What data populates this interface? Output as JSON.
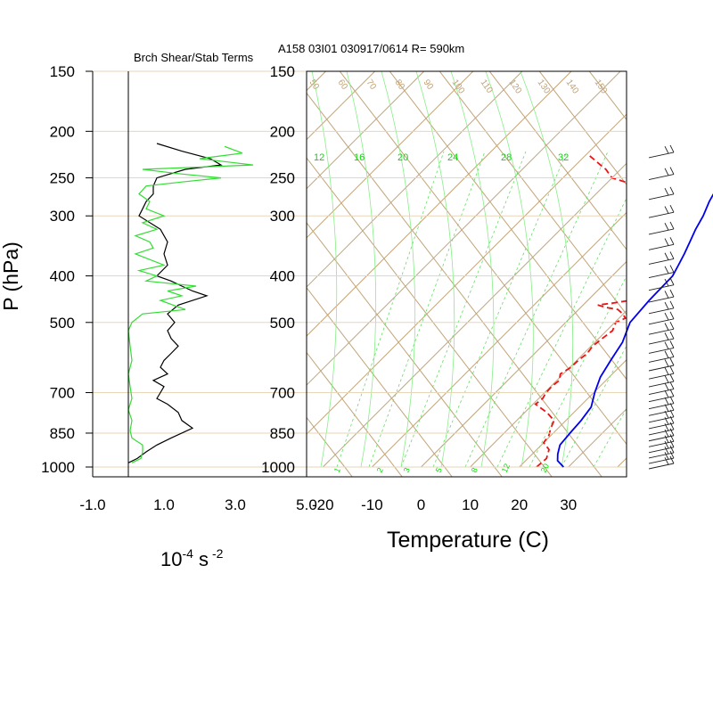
{
  "header": {
    "left_title": "Brch Shear/Stab Terms",
    "right_title": "A158 03I01 030917/0614 R= 590km"
  },
  "chart_data": [
    {
      "type": "line",
      "title": "Brch Shear/Stab Terms",
      "ylabel": "P (hPa)",
      "xlabel": "10-4 s -2",
      "xlabel_parts": {
        "base": "10",
        "exp": "-4",
        "unit": "s",
        "unit_exp": "-2"
      },
      "yscale": "log",
      "ylim": [
        1000,
        150
      ],
      "xlim": [
        -1.0,
        5.0
      ],
      "xticks": [
        "-1.0",
        "1.0",
        "3.0",
        "5.0"
      ],
      "xtick_values": [
        -1.0,
        1.0,
        3.0,
        5.0
      ],
      "yticks": [
        "150",
        "200",
        "250",
        "300",
        "400",
        "500",
        "700",
        "850",
        "1000"
      ],
      "ytick_values": [
        150,
        200,
        250,
        300,
        400,
        500,
        700,
        850,
        1000
      ],
      "series": [
        {
          "color": "#000000",
          "p": [
            980,
            960,
            930,
            900,
            870,
            830,
            800,
            770,
            740,
            720,
            700,
            680,
            660,
            640,
            620,
            600,
            580,
            560,
            540,
            520,
            500,
            480,
            460,
            440,
            430,
            420,
            410,
            400,
            380,
            360,
            340,
            320,
            300,
            290,
            280,
            270,
            260,
            250,
            240,
            235,
            228,
            220,
            212
          ],
          "x": [
            0.0,
            0.25,
            0.5,
            0.8,
            1.2,
            1.8,
            1.5,
            1.4,
            1.1,
            0.8,
            0.9,
            1.0,
            0.7,
            1.1,
            0.9,
            1.0,
            1.2,
            1.4,
            1.2,
            1.1,
            1.3,
            1.1,
            1.4,
            2.2,
            1.8,
            1.5,
            1.2,
            0.8,
            1.1,
            1.0,
            1.1,
            0.9,
            0.3,
            0.4,
            0.5,
            0.7,
            0.7,
            0.8,
            1.6,
            2.6,
            2.3,
            1.5,
            0.8
          ]
        },
        {
          "color": "#33dd33",
          "p": [
            980,
            960,
            930,
            900,
            870,
            840,
            800,
            760,
            720,
            680,
            640,
            600,
            560,
            520,
            500,
            480,
            470,
            450,
            440,
            430,
            420,
            410,
            400,
            390,
            380,
            360,
            350,
            340,
            330,
            320,
            310,
            300,
            290,
            280,
            270,
            260,
            255,
            250,
            245,
            240,
            235,
            228,
            222,
            215
          ],
          "x": [
            0.1,
            0.35,
            0.4,
            0.4,
            0.1,
            0.05,
            0.1,
            0.0,
            0.1,
            0.05,
            0.0,
            0.1,
            0.05,
            0.0,
            0.1,
            0.4,
            1.6,
            0.9,
            1.5,
            1.1,
            1.9,
            0.5,
            0.8,
            0.3,
            1.0,
            0.2,
            0.7,
            0.6,
            0.2,
            0.8,
            0.4,
            1.0,
            0.5,
            0.6,
            0.3,
            0.5,
            1.5,
            2.6,
            1.4,
            0.4,
            3.5,
            2.0,
            3.2,
            2.7
          ]
        }
      ]
    },
    {
      "type": "line",
      "title": "A158 03I01 030917/0614 R= 590km",
      "xlabel": "Temperature (C)",
      "yscale": "log",
      "ylim": [
        1000,
        150
      ],
      "xlim": [
        -23,
        42
      ],
      "xticks": [
        "-20",
        "-10",
        "0",
        "10",
        "20",
        "30"
      ],
      "xtick_values": [
        -20,
        -10,
        0,
        10,
        20,
        30
      ],
      "yticks": [
        "150",
        "200",
        "250",
        "300",
        "400",
        "500",
        "700",
        "850",
        "1000"
      ],
      "ytick_values": [
        150,
        200,
        250,
        300,
        400,
        500,
        700,
        850,
        1000
      ],
      "theta_labels": [
        "50",
        "60",
        "70",
        "80",
        "90",
        "100",
        "110",
        "120",
        "130",
        "140",
        "150"
      ],
      "mixing_ratio_labels_top": [
        "12",
        "16",
        "20",
        "24",
        "28",
        "32"
      ],
      "mixing_ratio_labels_bottom": [
        "1",
        "2",
        "3",
        "5",
        "8",
        "12",
        "20"
      ],
      "temperature": {
        "color": "#0000ee",
        "p": [
          1000,
          970,
          940,
          900,
          850,
          800,
          750,
          700,
          650,
          600,
          550,
          500,
          450,
          400,
          380,
          360,
          340,
          320,
          300,
          280,
          265,
          250,
          240,
          230,
          222,
          215,
          205
        ],
        "t": [
          29.0,
          26.5,
          25.2,
          23.8,
          23.4,
          23.1,
          22.4,
          20.2,
          18.2,
          16.9,
          15.6,
          13.1,
          12.5,
          12.3,
          11.3,
          10.2,
          8.9,
          7.5,
          6.3,
          4.6,
          3.6,
          3.0,
          3.3,
          3.8,
          3.2,
          2.5,
          1.8
        ]
      },
      "dewpoint": {
        "color": "#ee1111",
        "p": [
          1000,
          960,
          920,
          890,
          860,
          830,
          800,
          770,
          740,
          720,
          700,
          680,
          660,
          640,
          620,
          600,
          580,
          560,
          540,
          520,
          500,
          490,
          480,
          470,
          465,
          460,
          455,
          450,
          440,
          430,
          420,
          400,
          380,
          360,
          340,
          330,
          320,
          310,
          300,
          290,
          280,
          270,
          265,
          260,
          255,
          250,
          245,
          240,
          235,
          230,
          225
        ],
        "td": [
          23.5,
          23.8,
          22.5,
          20.0,
          19.6,
          18.5,
          17.6,
          14.5,
          10.5,
          10.8,
          10.3,
          10.2,
          10.5,
          9.4,
          10.2,
          10.3,
          10.7,
          10.3,
          10.7,
          11.2,
          10.2,
          11.3,
          9.9,
          8.0,
          5.0,
          3.0,
          6.0,
          8.5,
          10.3,
          10.6,
          10.1,
          8.8,
          6.9,
          5.6,
          5.0,
          3.5,
          3.5,
          2.8,
          0.2,
          -2.0,
          -6.0,
          -9.5,
          -11.5,
          -14.0,
          -16.5,
          -20.0,
          -21.5,
          -23.0,
          -25.0,
          -27.0,
          -29.0
        ]
      }
    }
  ]
}
